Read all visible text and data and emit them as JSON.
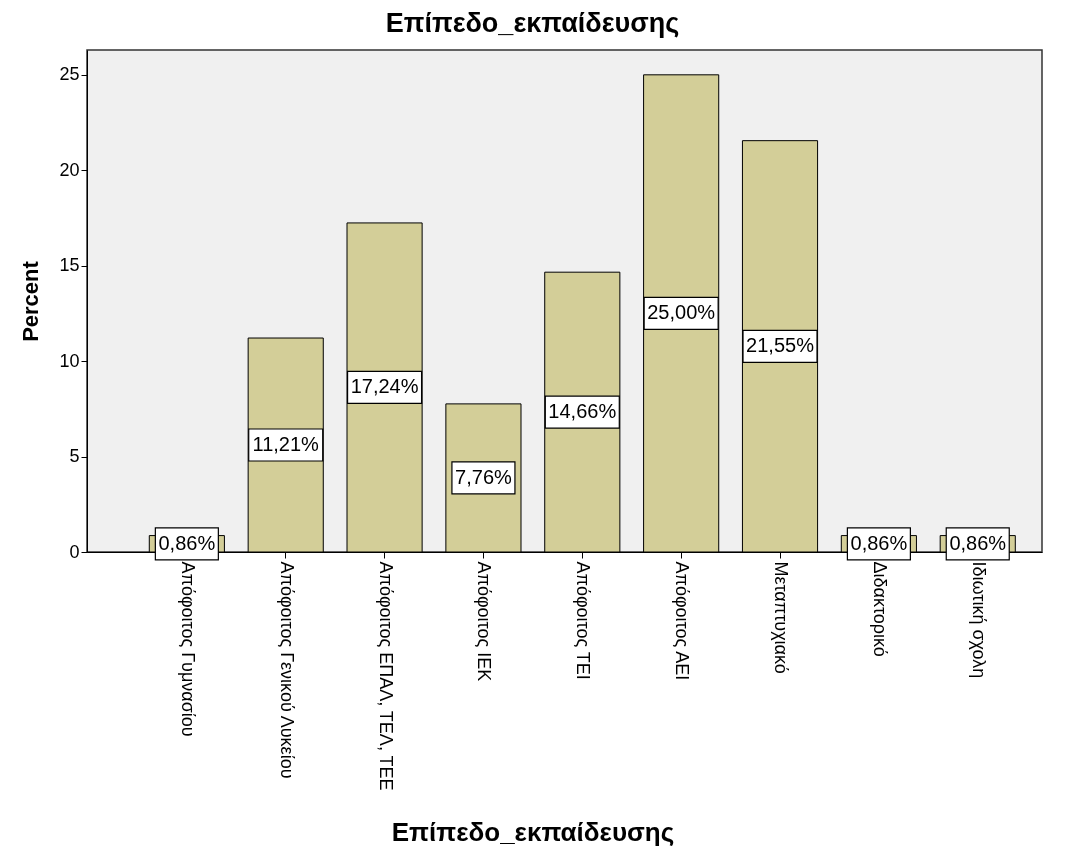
{
  "chart_data": {
    "type": "bar",
    "title": "Επίπεδο_εκπαίδευσης",
    "xlabel": "Επίπεδο_εκπαίδευσης",
    "ylabel": "Percent",
    "categories": [
      "Απόφοιτος Γυμνασίου",
      "Απόφοιτος Γενικού Λυκείου",
      "Απόφοιτος ΕΠΑΛ, ΤΕΛ, ΤΕΕ",
      "Απόφοιτος ΙΕΚ",
      "Απόφοιτος ΤΕΙ",
      "Απόφοιτος ΑΕΙ",
      "Μεταπτυχιακό",
      "Διδακτορικό",
      "Ιδιωτική σχολη"
    ],
    "values": [
      0.86,
      11.21,
      17.24,
      7.76,
      14.66,
      25.0,
      21.55,
      0.86,
      0.86
    ],
    "value_labels": [
      "0,86%",
      "11,21%",
      "17,24%",
      "7,76%",
      "14,66%",
      "25,00%",
      "21,55%",
      "0,86%",
      "0,86%"
    ],
    "color": "#d3ce98",
    "ylim": [
      0,
      26.3
    ],
    "yticks": [
      0,
      5,
      10,
      15,
      20,
      25
    ],
    "grid": false
  }
}
